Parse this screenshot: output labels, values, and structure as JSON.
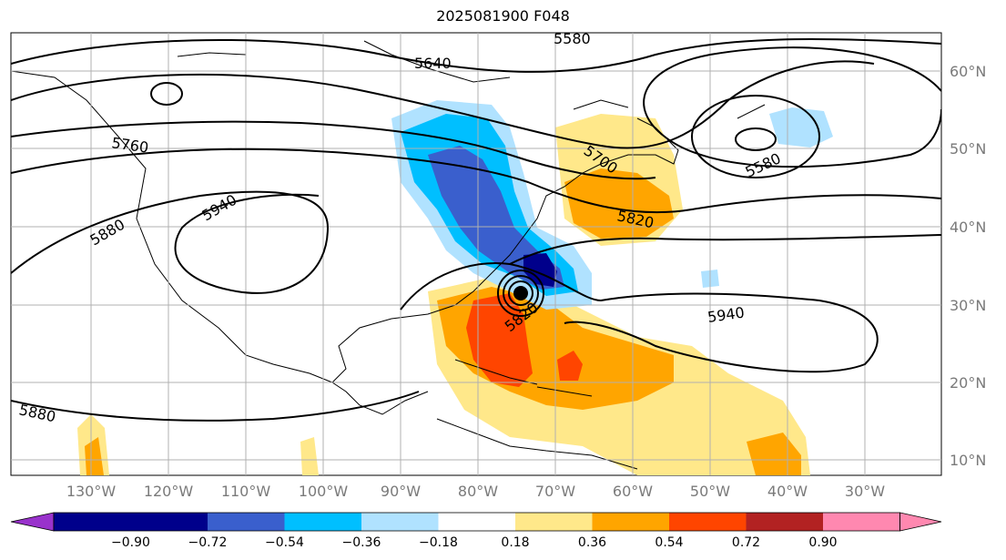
{
  "title": "2025081900 F048",
  "map": {
    "lon_labels": [
      "130°W",
      "120°W",
      "110°W",
      "100°W",
      "90°W",
      "80°W",
      "70°W",
      "60°W",
      "50°W",
      "40°W",
      "30°W"
    ],
    "lat_labels": [
      "60°N",
      "50°N",
      "40°N",
      "30°N",
      "20°N",
      "10°N"
    ],
    "contour_labels": [
      "5580",
      "5640",
      "5760",
      "5700",
      "5580",
      "5820",
      "5940",
      "5880",
      "5940",
      "5820",
      "5880"
    ]
  },
  "colorbar": {
    "ticks": [
      "−0.90",
      "−0.72",
      "−0.54",
      "−0.36",
      "−0.18",
      "0.18",
      "0.36",
      "0.54",
      "0.72",
      "0.90"
    ],
    "colors": [
      "#9932cc",
      "#00008b",
      "#3a5fcd",
      "#00bfff",
      "#b0e2ff",
      "#ffffff",
      "#ffe88a",
      "#ffa500",
      "#ff4500",
      "#b22222",
      "#ff88b0"
    ]
  }
}
